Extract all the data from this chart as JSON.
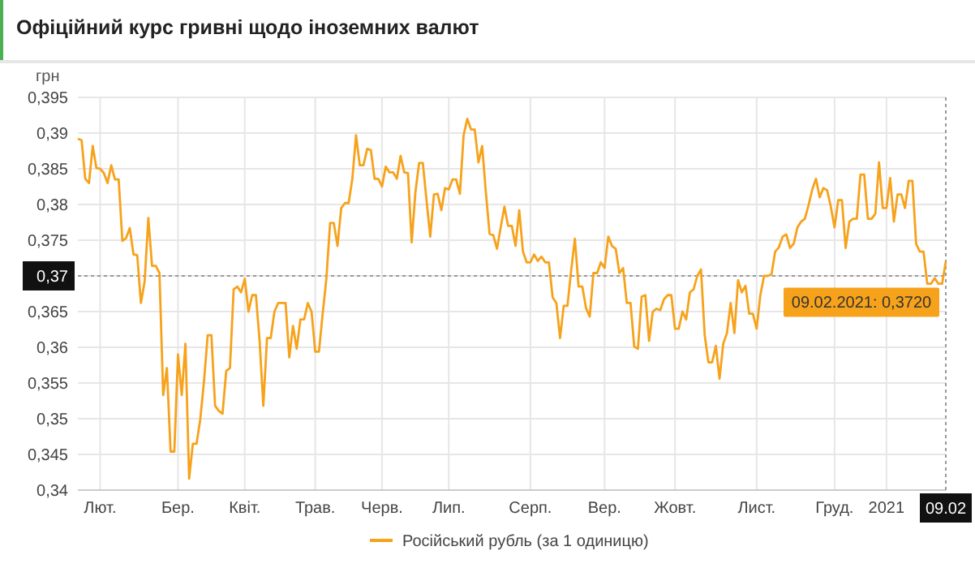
{
  "chart_data": {
    "type": "line",
    "title": "Офіційний курс гривні щодо іноземних валют",
    "ylabel": "грн",
    "categories": [
      null,
      null,
      null,
      null,
      null,
      null,
      "Лют.",
      null,
      null,
      null,
      null,
      null,
      null,
      null,
      null,
      null,
      null,
      null,
      null,
      null,
      null,
      null,
      null,
      null,
      null,
      null,
      null,
      "Бер.",
      null,
      null,
      null,
      null,
      null,
      null,
      null,
      null,
      null,
      null,
      null,
      null,
      null,
      null,
      null,
      null,
      null,
      "Квіт.",
      null,
      null,
      null,
      null,
      null,
      null,
      null,
      null,
      null,
      null,
      null,
      null,
      null,
      null,
      null,
      null,
      null,
      null,
      "Трав.",
      null,
      null,
      null,
      null,
      null,
      null,
      null,
      null,
      null,
      null,
      null,
      null,
      null,
      null,
      null,
      null,
      null,
      "Черв.",
      null,
      null,
      null,
      null,
      null,
      null,
      null,
      null,
      null,
      null,
      null,
      null,
      null,
      null,
      null,
      null,
      null,
      "Лип.",
      null,
      null,
      null,
      null,
      null,
      null,
      null,
      null,
      null,
      null,
      null,
      null,
      null,
      null,
      null,
      null,
      null,
      null,
      null,
      null,
      null,
      "Серп.",
      null,
      null,
      null,
      null,
      null,
      null,
      null,
      null,
      null,
      null,
      null,
      null,
      null,
      null,
      null,
      null,
      null,
      null,
      null,
      "Вер.",
      null,
      null,
      null,
      null,
      null,
      null,
      null,
      null,
      null,
      null,
      null,
      null,
      null,
      null,
      null,
      null,
      null,
      null,
      "Жовт.",
      null,
      null,
      null,
      null,
      null,
      null,
      null,
      null,
      null,
      null,
      null,
      null,
      null,
      null,
      null,
      null,
      null,
      null,
      null,
      null,
      null,
      "Лист.",
      null,
      null,
      null,
      null,
      null,
      null,
      null,
      null,
      null,
      null,
      null,
      null,
      null,
      null,
      null,
      null,
      null,
      null,
      null,
      null,
      "Груд.",
      null,
      null,
      null,
      null,
      null,
      null,
      null,
      null,
      null,
      null,
      null,
      null,
      null,
      "2021",
      null,
      null,
      null,
      null,
      null,
      null,
      null,
      null,
      null,
      null,
      null,
      null,
      null,
      null,
      null,
      "09.02"
    ],
    "series": [
      {
        "name": "Російський рубль (за 1 одиницю)",
        "color": "#f7a21b",
        "values": [
          0.3892,
          0.389,
          0.3836,
          0.383,
          0.3882,
          0.3851,
          0.385,
          0.3844,
          0.383,
          0.3855,
          0.3835,
          0.3835,
          0.3749,
          0.3753,
          0.3767,
          0.373,
          0.3729,
          0.3662,
          0.3692,
          0.3781,
          0.3714,
          0.3714,
          0.3704,
          0.3533,
          0.3571,
          0.3454,
          0.3454,
          0.359,
          0.3533,
          0.3605,
          0.3416,
          0.3465,
          0.3465,
          0.3499,
          0.3552,
          0.3617,
          0.3617,
          0.3518,
          0.3511,
          0.3507,
          0.3567,
          0.3571,
          0.3681,
          0.3685,
          0.3677,
          0.3696,
          0.365,
          0.3673,
          0.3673,
          0.3609,
          0.3518,
          0.3613,
          0.3613,
          0.365,
          0.3662,
          0.3662,
          0.3662,
          0.3586,
          0.363,
          0.3598,
          0.3639,
          0.3639,
          0.3662,
          0.365,
          0.3594,
          0.3594,
          0.3647,
          0.3696,
          0.3774,
          0.3774,
          0.3742,
          0.3795,
          0.3802,
          0.3802,
          0.3836,
          0.3897,
          0.3855,
          0.3855,
          0.3878,
          0.3876,
          0.3836,
          0.3836,
          0.3825,
          0.3853,
          0.3845,
          0.3845,
          0.3836,
          0.3868,
          0.3845,
          0.3844,
          0.3747,
          0.3817,
          0.3858,
          0.3858,
          0.3806,
          0.3755,
          0.3814,
          0.3815,
          0.3792,
          0.3823,
          0.3821,
          0.3835,
          0.3835,
          0.3815,
          0.3897,
          0.392,
          0.3905,
          0.3905,
          0.3859,
          0.3882,
          0.3817,
          0.3759,
          0.3757,
          0.3738,
          0.3768,
          0.3797,
          0.377,
          0.377,
          0.3742,
          0.3792,
          0.3734,
          0.3719,
          0.3719,
          0.373,
          0.3721,
          0.3727,
          0.3719,
          0.3719,
          0.367,
          0.3662,
          0.3613,
          0.3658,
          0.3658,
          0.3708,
          0.3752,
          0.3685,
          0.3685,
          0.3655,
          0.3643,
          0.3704,
          0.3704,
          0.3719,
          0.3711,
          0.3755,
          0.3742,
          0.3738,
          0.3704,
          0.3711,
          0.3662,
          0.3662,
          0.3601,
          0.3598,
          0.3671,
          0.3673,
          0.3609,
          0.365,
          0.3654,
          0.3652,
          0.3667,
          0.3673,
          0.3673,
          0.3626,
          0.3626,
          0.365,
          0.3639,
          0.3677,
          0.3681,
          0.37,
          0.3709,
          0.3617,
          0.3579,
          0.3579,
          0.3602,
          0.3556,
          0.3605,
          0.362,
          0.3662,
          0.362,
          0.3694,
          0.3677,
          0.3686,
          0.3647,
          0.3647,
          0.3626,
          0.3673,
          0.37,
          0.37,
          0.3702,
          0.3734,
          0.374,
          0.3755,
          0.3758,
          0.3739,
          0.3745,
          0.3768,
          0.3776,
          0.378,
          0.3799,
          0.3821,
          0.3836,
          0.381,
          0.3823,
          0.382,
          0.3797,
          0.3768,
          0.3806,
          0.3806,
          0.3739,
          0.3776,
          0.378,
          0.378,
          0.3842,
          0.3842,
          0.378,
          0.378,
          0.3787,
          0.3859,
          0.3795,
          0.3795,
          0.3837,
          0.3776,
          0.3814,
          0.3814,
          0.3795,
          0.3833,
          0.3833,
          0.3745,
          0.3734,
          0.3734,
          0.3689,
          0.3689,
          0.3697,
          0.3689,
          0.3689,
          0.372
        ]
      }
    ],
    "ylim": [
      0.34,
      0.395
    ],
    "yticks": [
      {
        "value": 0.34,
        "label": "0,34"
      },
      {
        "value": 0.345,
        "label": "0,345"
      },
      {
        "value": 0.35,
        "label": "0,35"
      },
      {
        "value": 0.355,
        "label": "0,355"
      },
      {
        "value": 0.36,
        "label": "0,36"
      },
      {
        "value": 0.365,
        "label": "0,365"
      },
      {
        "value": 0.37,
        "label": "0,37"
      },
      {
        "value": 0.375,
        "label": "0,375"
      },
      {
        "value": 0.38,
        "label": "0,38"
      },
      {
        "value": 0.385,
        "label": "0,385"
      },
      {
        "value": 0.39,
        "label": "0,39"
      },
      {
        "value": 0.395,
        "label": "0,395"
      }
    ],
    "grid": true,
    "legend": "bottom",
    "ref_lines": [
      {
        "axis": "y",
        "value": 0.37,
        "line_style": "dotted",
        "color": "#999999"
      },
      {
        "axis": "x",
        "value": "09.02",
        "line_style": "dotted",
        "color": "#999999"
      }
    ],
    "annotations": [
      {
        "text": "09.02.2021: 0,3720",
        "x": "09.02",
        "y": 0.372
      }
    ]
  }
}
